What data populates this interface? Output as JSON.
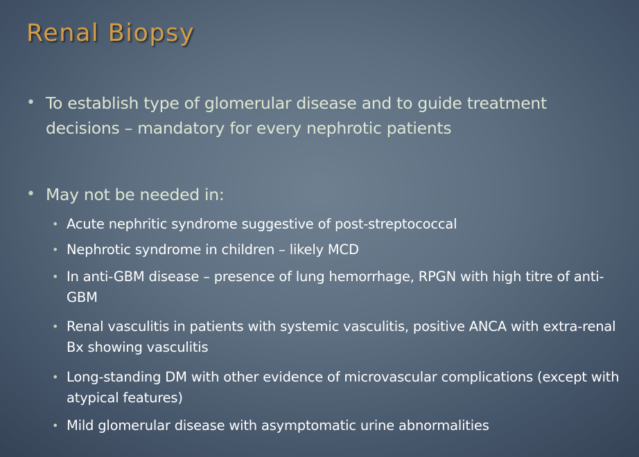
{
  "slide": {
    "title": "Renal Biopsy",
    "bullets": [
      {
        "text": "To establish type of glomerular disease and to guide treatment decisions – mandatory for every nephrotic patients"
      },
      {
        "text": "May not be needed in:",
        "subitems": [
          "Acute nephritic syndrome suggestive of post-streptococcal",
          "Nephrotic syndrome in children – likely MCD",
          "In anti-GBM disease – presence of lung hemorrhage, RPGN with high titre of anti-GBM",
          "Renal vasculitis in patients with systemic vasculitis, positive ANCA with extra-renal Bx showing vasculitis",
          "Long-standing DM with other evidence of microvascular complications (except with atypical features)",
          "Mild glomerular disease with asymptomatic urine abnormalities"
        ]
      }
    ]
  }
}
